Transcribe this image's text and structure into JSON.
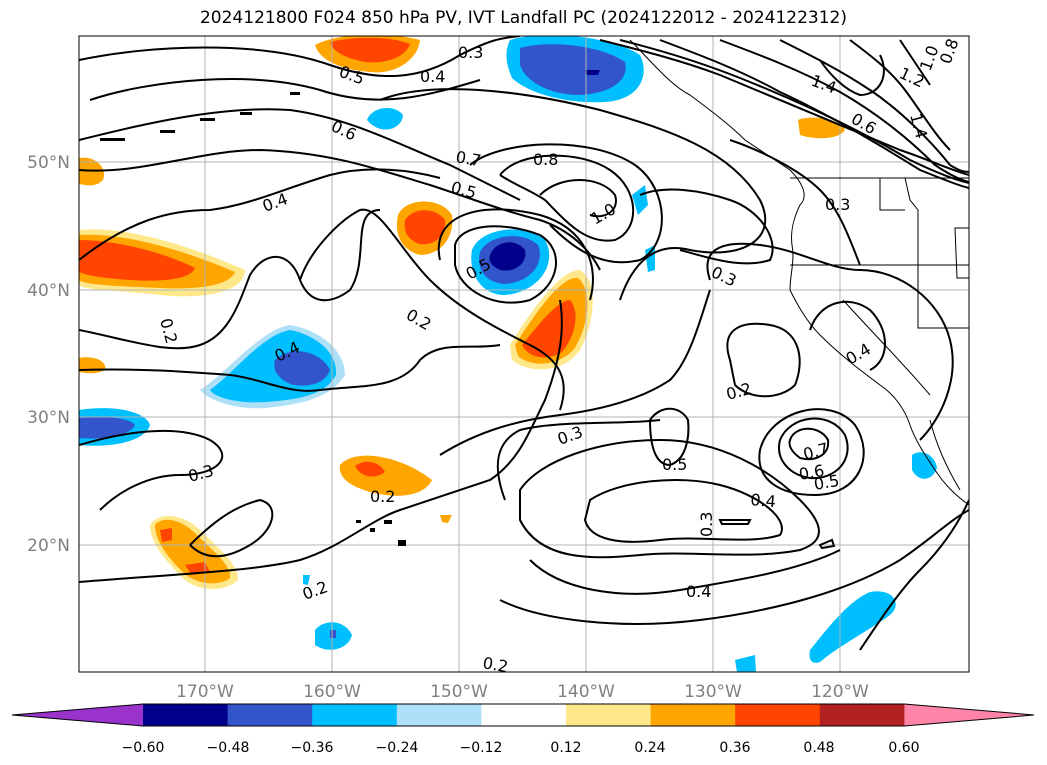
{
  "title": "2024121800 F024 850 hPa PV, IVT Landfall PC (2024122012 - 2024122312)",
  "latitude_labels": [
    "50°N",
    "40°N",
    "30°N",
    "20°N"
  ],
  "longitude_labels": [
    "170°W",
    "160°W",
    "150°W",
    "140°W",
    "130°W",
    "120°W"
  ],
  "contour_labels": [
    "0.3",
    "0.5",
    "0.4",
    "0.6",
    "0.7",
    "0.5",
    "0.8",
    "1.0",
    "0.4",
    "0.5",
    "0.2",
    "0.2",
    "0.4",
    "0.3",
    "0.2",
    "0.3",
    "0.5",
    "0.2",
    "0.3",
    "0.4",
    "0.3",
    "0.4",
    "0.7",
    "0.6",
    "0.5",
    "0.2",
    "0.2",
    "1.4",
    "1.2",
    "1.0",
    "0.8",
    "1.4",
    "0.6",
    "0.3",
    "0.4"
  ],
  "colorbar": {
    "tick_labels": [
      "−0.60",
      "−0.48",
      "−0.36",
      "−0.24",
      "−0.12",
      "0.12",
      "0.24",
      "0.36",
      "0.48",
      "0.60"
    ],
    "colors": [
      "#9933cc",
      "#00008b",
      "#3355cc",
      "#00bfff",
      "#aee0f8",
      "#ffffff",
      "#ffe88a",
      "#ffa500",
      "#ff4500",
      "#b22222",
      "#ff85a8"
    ]
  },
  "chart_data": {
    "type": "contour_map",
    "title": "2024121800 F024 850 hPa PV, IVT Landfall PC (2024122012 - 2024122312)",
    "contour_field": "850 hPa PV",
    "shaded_field": "IVT Landfall PC",
    "lat_range": [
      10,
      60
    ],
    "lon_range": [
      -180,
      -110
    ],
    "shading_levels": [
      -0.6,
      -0.48,
      -0.36,
      -0.24,
      -0.12,
      0.12,
      0.24,
      0.36,
      0.48,
      0.6
    ],
    "contour_levels": [
      0.2,
      0.3,
      0.4,
      0.5,
      0.6,
      0.7,
      0.8,
      1.0,
      1.2,
      1.4
    ],
    "grid": true
  }
}
